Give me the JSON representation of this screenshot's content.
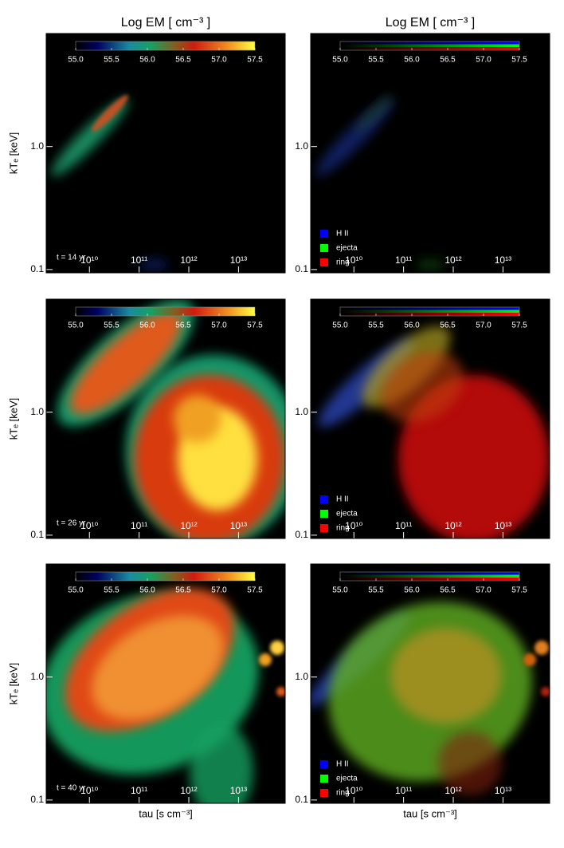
{
  "chart_data": [
    {
      "type": "heatmap",
      "title": "Log EM [ cm⁻³ ]",
      "ylabel": "kTₑ [keV]",
      "annotation": "t = 14 yr",
      "colormap": "rainbow",
      "xscale": "log",
      "yscale": "log",
      "xlim": [
        1350000000.0,
        87000000000000.0
      ],
      "ylim": [
        0.094,
        8.3
      ],
      "xticks": [
        {
          "value": 10000000000.0,
          "label": "10¹⁰"
        },
        {
          "value": 100000000000.0,
          "label": "10¹¹"
        },
        {
          "value": 1000000000000.0,
          "label": "10¹²"
        },
        {
          "value": 10000000000000.0,
          "label": "10¹³"
        }
      ],
      "yticks": [
        {
          "value": 1,
          "label": "1.0"
        },
        0.1
      ],
      "clim": [
        55,
        57.5
      ],
      "cticks": [
        {
          "value": 55,
          "label": "55.0"
        },
        55.5,
        {
          "value": 56,
          "label": "56.0"
        },
        56.5,
        {
          "value": 57,
          "label": "57.0"
        },
        57.5
      ]
    },
    {
      "type": "heatmap",
      "title": "Log EM [ cm⁻³ ]",
      "colormap": "rgb",
      "xscale": "log",
      "yscale": "log",
      "xlim": [
        1350000000.0,
        87000000000000.0
      ],
      "ylim": [
        0.094,
        8.3
      ],
      "xticks": [
        {
          "value": 10000000000.0,
          "label": "10¹⁰"
        },
        {
          "value": 100000000000.0,
          "label": "10¹¹"
        },
        {
          "value": 1000000000000.0,
          "label": "10¹²"
        },
        {
          "value": 10000000000000.0,
          "label": "10¹³"
        }
      ],
      "yticks": [
        {
          "value": 1,
          "label": "1.0"
        },
        0.1
      ],
      "clim": [
        55,
        57.5
      ],
      "cticks": [
        {
          "value": 55,
          "label": "55.0"
        },
        55.5,
        {
          "value": 56,
          "label": "56.0"
        },
        56.5,
        {
          "value": 57,
          "label": "57.0"
        },
        57.5
      ],
      "series": [
        {
          "name": "H II",
          "color": "#0000ff"
        },
        {
          "name": "ejecta",
          "color": "#00ff00"
        },
        {
          "name": "ring",
          "color": "#ff0000"
        }
      ]
    },
    {
      "type": "heatmap",
      "ylabel": "kTₑ [keV]",
      "annotation": "t = 26 yr",
      "colormap": "rainbow",
      "xscale": "log",
      "yscale": "log",
      "xlim": [
        1350000000.0,
        87000000000000.0
      ],
      "ylim": [
        0.094,
        8.3
      ],
      "xticks": [
        {
          "value": 10000000000.0,
          "label": "10¹⁰"
        },
        {
          "value": 100000000000.0,
          "label": "10¹¹"
        },
        {
          "value": 1000000000000.0,
          "label": "10¹²"
        },
        {
          "value": 10000000000000.0,
          "label": "10¹³"
        }
      ],
      "yticks": [
        {
          "value": 1,
          "label": "1.0"
        },
        0.1
      ],
      "clim": [
        55,
        57.5
      ],
      "cticks": [
        {
          "value": 55,
          "label": "55.0"
        },
        55.5,
        {
          "value": 56,
          "label": "56.0"
        },
        56.5,
        {
          "value": 57,
          "label": "57.0"
        },
        57.5
      ]
    },
    {
      "type": "heatmap",
      "colormap": "rgb",
      "xscale": "log",
      "yscale": "log",
      "xlim": [
        1350000000.0,
        87000000000000.0
      ],
      "ylim": [
        0.094,
        8.3
      ],
      "xticks": [
        {
          "value": 10000000000.0,
          "label": "10¹⁰"
        },
        {
          "value": 100000000000.0,
          "label": "10¹¹"
        },
        {
          "value": 1000000000000.0,
          "label": "10¹²"
        },
        {
          "value": 10000000000000.0,
          "label": "10¹³"
        }
      ],
      "yticks": [
        {
          "value": 1,
          "label": "1.0"
        },
        0.1
      ],
      "clim": [
        55,
        57.5
      ],
      "cticks": [
        {
          "value": 55,
          "label": "55.0"
        },
        55.5,
        {
          "value": 56,
          "label": "56.0"
        },
        56.5,
        {
          "value": 57,
          "label": "57.0"
        },
        57.5
      ],
      "series": [
        {
          "name": "H II",
          "color": "#0000ff"
        },
        {
          "name": "ejecta",
          "color": "#00ff00"
        },
        {
          "name": "ring",
          "color": "#ff0000"
        }
      ]
    },
    {
      "type": "heatmap",
      "ylabel": "kTₑ [keV]",
      "xlabel": "tau [s cm⁻³]",
      "annotation": "t = 40 yr",
      "colormap": "rainbow",
      "xscale": "log",
      "yscale": "log",
      "xlim": [
        1350000000.0,
        87000000000000.0
      ],
      "ylim": [
        0.094,
        8.3
      ],
      "xticks": [
        {
          "value": 10000000000.0,
          "label": "10¹⁰"
        },
        {
          "value": 100000000000.0,
          "label": "10¹¹"
        },
        {
          "value": 1000000000000.0,
          "label": "10¹²"
        },
        {
          "value": 10000000000000.0,
          "label": "10¹³"
        }
      ],
      "yticks": [
        {
          "value": 1,
          "label": "1.0"
        },
        0.1
      ],
      "clim": [
        55,
        57.5
      ],
      "cticks": [
        {
          "value": 55,
          "label": "55.0"
        },
        55.5,
        {
          "value": 56,
          "label": "56.0"
        },
        56.5,
        {
          "value": 57,
          "label": "57.0"
        },
        57.5
      ]
    },
    {
      "type": "heatmap",
      "xlabel": "tau [s cm⁻³]",
      "colormap": "rgb",
      "xscale": "log",
      "yscale": "log",
      "xlim": [
        1350000000.0,
        87000000000000.0
      ],
      "ylim": [
        0.094,
        8.3
      ],
      "xticks": [
        {
          "value": 10000000000.0,
          "label": "10¹⁰"
        },
        {
          "value": 100000000000.0,
          "label": "10¹¹"
        },
        {
          "value": 1000000000000.0,
          "label": "10¹²"
        },
        {
          "value": 10000000000000.0,
          "label": "10¹³"
        }
      ],
      "yticks": [
        {
          "value": 1,
          "label": "1.0"
        },
        0.1
      ],
      "clim": [
        55,
        57.5
      ],
      "cticks": [
        {
          "value": 55,
          "label": "55.0"
        },
        55.5,
        {
          "value": 56,
          "label": "56.0"
        },
        56.5,
        {
          "value": 57,
          "label": "57.0"
        },
        57.5
      ],
      "series": [
        {
          "name": "H II",
          "color": "#0000ff"
        },
        {
          "name": "ejecta",
          "color": "#00ff00"
        },
        {
          "name": "ring",
          "color": "#ff0000"
        }
      ]
    }
  ]
}
